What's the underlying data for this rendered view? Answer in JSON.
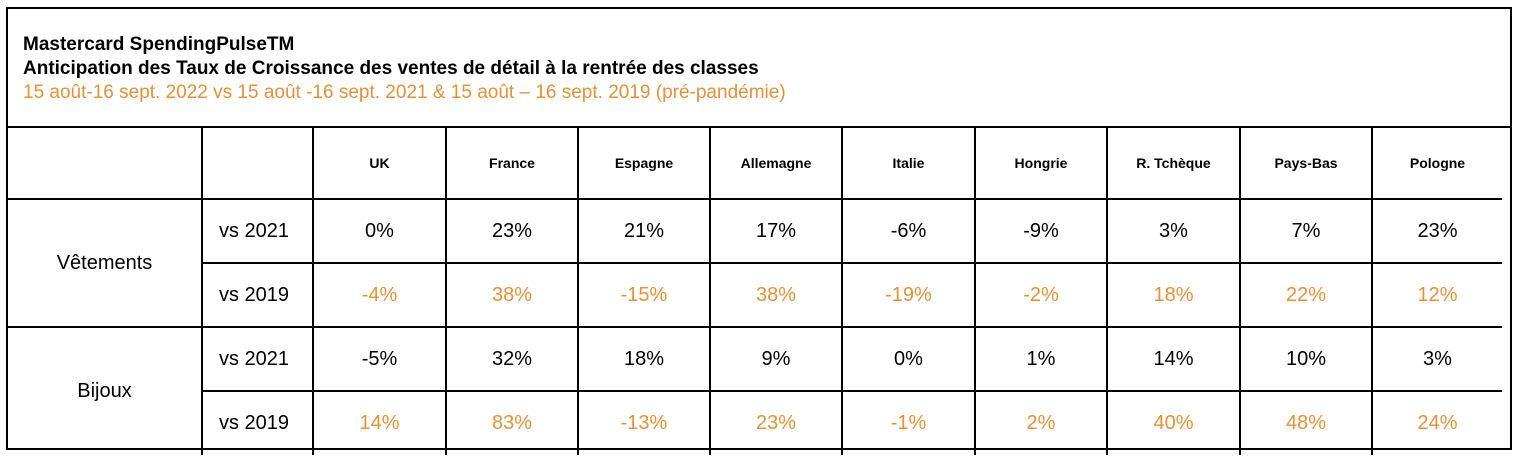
{
  "title": {
    "line1": "Mastercard SpendingPulseTM",
    "line2": "Anticipation des Taux de Croissance des ventes de détail à la rentrée des classes",
    "line3": "15 août-16 sept. 2022 vs 15 août -16 sept. 2021 & 15 août – 16 sept. 2019 (pré-pandémie)"
  },
  "colors": {
    "accent": "#e69138",
    "text": "#000000"
  },
  "table": {
    "columns": [
      "UK",
      "France",
      "Espagne",
      "Allemagne",
      "Italie",
      "Hongrie",
      "R. Tchèque",
      "Pays-Bas",
      "Pologne"
    ],
    "groups": [
      {
        "category": "Vêtements",
        "rows": [
          {
            "label": "vs 2021",
            "values": [
              "0%",
              "23%",
              "21%",
              "17%",
              "-6%",
              "-9%",
              "3%",
              "7%",
              "23%"
            ]
          },
          {
            "label": "vs 2019",
            "values": [
              "-4%",
              "38%",
              "-15%",
              "38%",
              "-19%",
              "-2%",
              "18%",
              "22%",
              "12%"
            ]
          }
        ]
      },
      {
        "category": "Bijoux",
        "rows": [
          {
            "label": "vs 2021",
            "values": [
              "-5%",
              "32%",
              "18%",
              "9%",
              "0%",
              "1%",
              "14%",
              "10%",
              "3%"
            ]
          },
          {
            "label": "vs 2019",
            "values": [
              "14%",
              "83%",
              "-13%",
              "23%",
              "-1%",
              "2%",
              "40%",
              "48%",
              "24%"
            ]
          }
        ]
      }
    ]
  }
}
